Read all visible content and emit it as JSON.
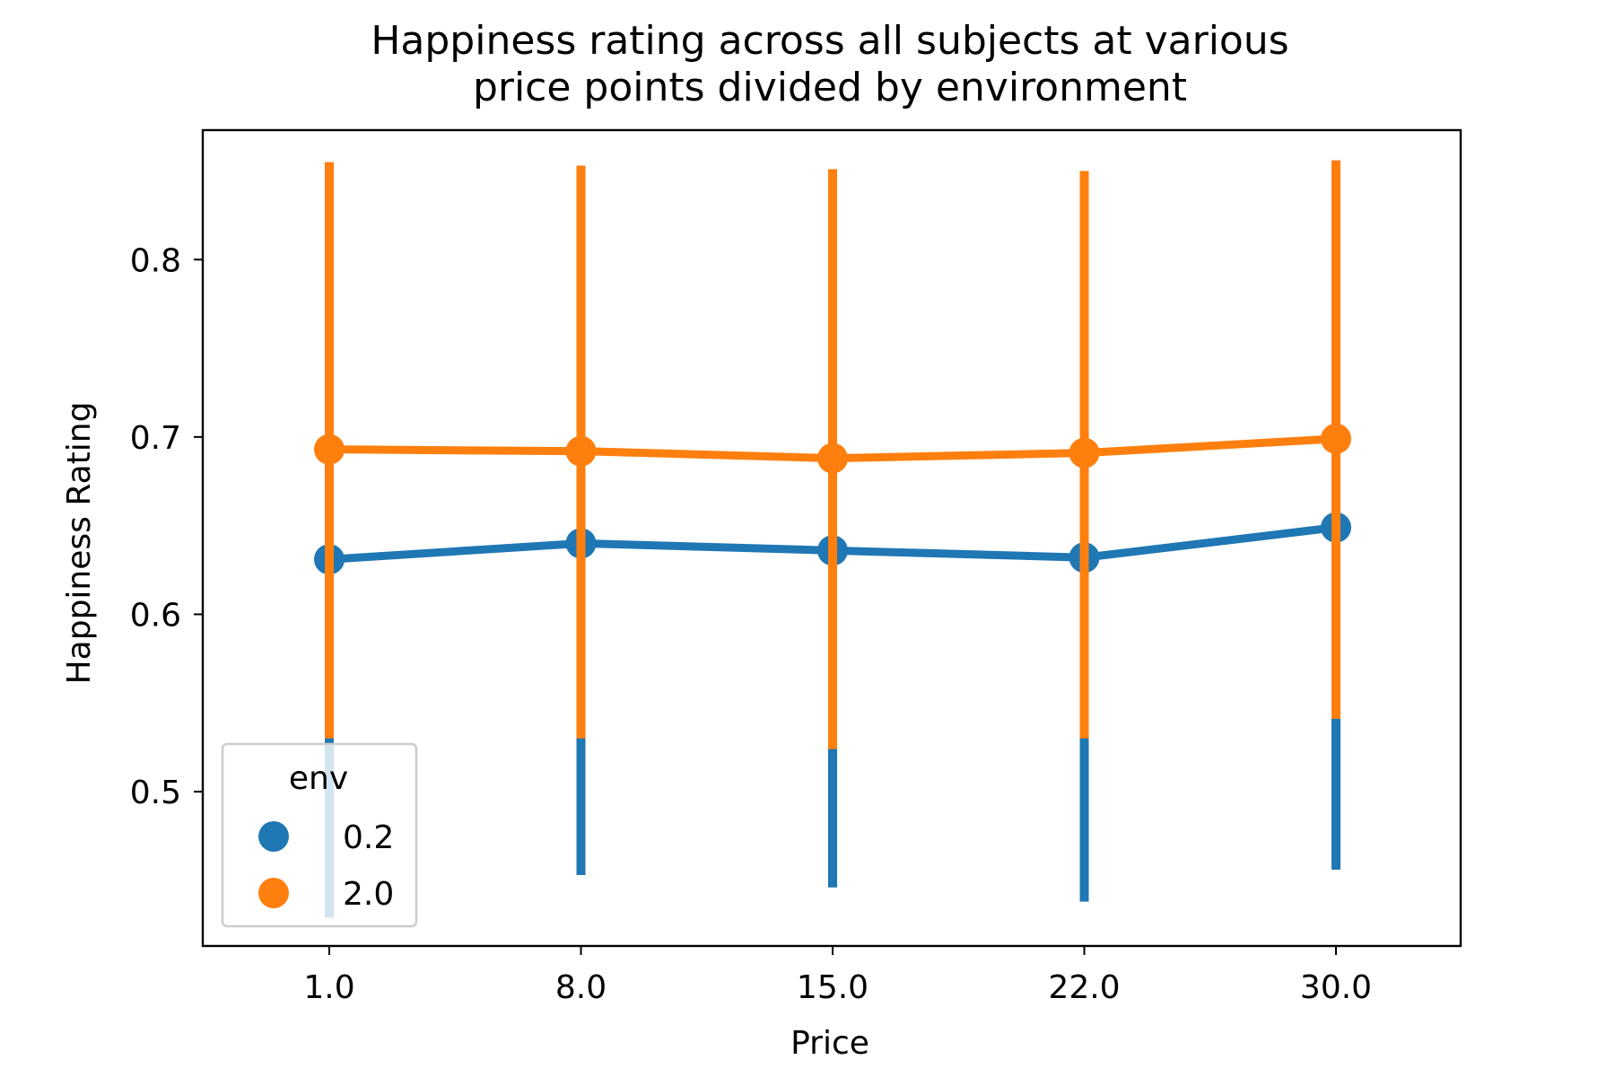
{
  "chart_data": {
    "type": "line",
    "title_lines": [
      "Happiness rating across all subjects at various",
      "price points divided by environment"
    ],
    "xlabel": "Price",
    "ylabel": "Happiness Rating",
    "categories": [
      "1.0",
      "8.0",
      "15.0",
      "22.0",
      "30.0"
    ],
    "yticks": [
      "0.5",
      "0.6",
      "0.7",
      "0.8"
    ],
    "ytick_values": [
      0.5,
      0.6,
      0.7,
      0.8
    ],
    "ylim": [
      0.413,
      0.873
    ],
    "grid": false,
    "legend": {
      "title": "env",
      "placement": "lower-left"
    },
    "series": [
      {
        "name": "0.2",
        "color": "#1f77b4",
        "values": [
          0.631,
          0.64,
          0.636,
          0.632,
          0.649
        ],
        "ci_low": [
          0.429,
          0.453,
          0.446,
          0.438,
          0.456
        ],
        "ci_high": [
          0.83,
          0.831,
          0.83,
          0.83,
          0.836
        ]
      },
      {
        "name": "2.0",
        "color": "#ff7f0e",
        "values": [
          0.693,
          0.692,
          0.688,
          0.691,
          0.699
        ],
        "ci_low": [
          0.53,
          0.53,
          0.524,
          0.53,
          0.541
        ],
        "ci_high": [
          0.855,
          0.853,
          0.851,
          0.85,
          0.856
        ]
      }
    ]
  }
}
